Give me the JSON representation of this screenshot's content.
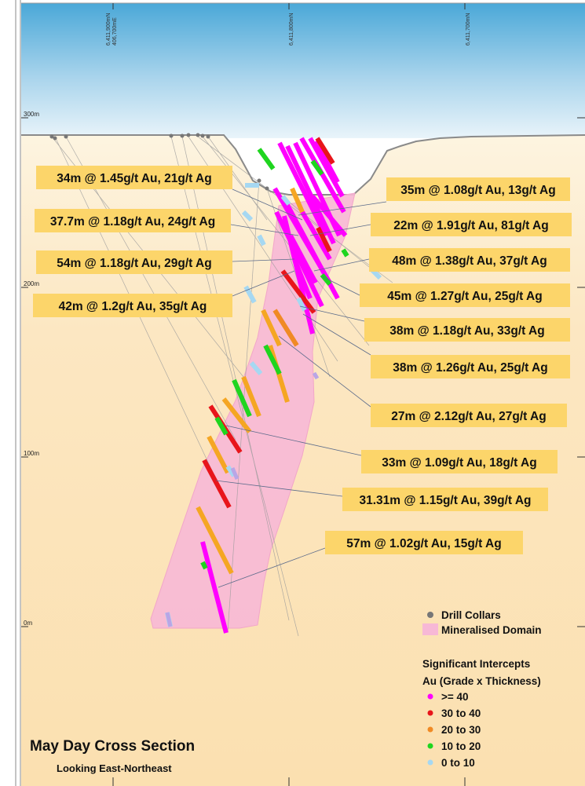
{
  "title": "May Day Cross Section",
  "subtitle": "Looking East-Northeast",
  "northings": [
    {
      "label1": "6,411,900mN",
      "label2": "406,700mE"
    },
    {
      "label1": "6,411,800mN",
      "label2": ""
    },
    {
      "label1": "6,411,700mN",
      "label2": ""
    }
  ],
  "elevations": [
    "300m",
    "200m",
    "100m",
    "0m"
  ],
  "intercepts": [
    "34m @ 1.45g/t Au, 21g/t Ag",
    "35m @ 1.08g/t Au, 13g/t Ag",
    "37.7m @ 1.18g/t Au, 24g/t Ag",
    "22m @ 1.91g/t Au, 81g/t Ag",
    "54m @ 1.18g/t Au, 29g/t Ag",
    "48m @ 1.38g/t Au, 37g/t Ag",
    "42m @ 1.2g/t Au, 35g/t Ag",
    "45m @ 1.27g/t Au, 25g/t Ag",
    "38m @ 1.18g/t Au, 33g/t Ag",
    "38m @ 1.26g/t Au, 25g/t Ag",
    "27m @ 2.12g/t Au, 27g/t Ag",
    "33m @ 1.09g/t Au, 18g/t Ag",
    "31.31m @ 1.15g/t Au, 39g/t Ag",
    "57m @ 1.02g/t Au, 15g/t Ag"
  ],
  "legend": {
    "drill_collars": "Drill Collars",
    "mineralised_domain": "Mineralised Domain",
    "heading1": "Significant Intercepts",
    "heading2": "Au (Grade x Thickness)",
    "grades": [
      {
        "label": ">= 40",
        "color": "#ff00ff"
      },
      {
        "label": "30 to 40",
        "color": "#e8151b"
      },
      {
        "label": "20 to 30",
        "color": "#f08a24"
      },
      {
        "label": "10 to 20",
        "color": "#1fd51f"
      },
      {
        "label": "0 to 10",
        "color": "#a6d8f2"
      }
    ]
  },
  "colors": {
    "callout_fill": "#fcd56a",
    "domain_fill": "#f7b8d6",
    "collar": "#777777",
    "sky_top": "#4aa8d8",
    "ground": "#fbe2b3"
  }
}
